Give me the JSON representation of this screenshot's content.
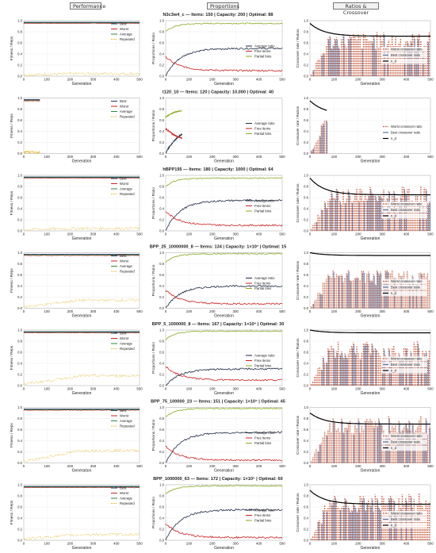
{
  "columns": [
    "Performance",
    "Proportions",
    "Ratios & Crossover"
  ],
  "colors": {
    "best": "#1f3a5f",
    "worst": "#cc2222",
    "average": "#2a8a4a",
    "repeated": "#e0a800",
    "average_ratio": "#1f2a44",
    "free_items": "#cc2222",
    "partial_bins": "#88aa22",
    "worst_cx": "#c8664a",
    "best_cx": "#5577aa",
    "n_d": "#000000"
  },
  "labels": {
    "generation": "Generation",
    "fitness": "Fitness / Reps",
    "proportion": "Proportions / Ratio",
    "crossover": "Crossover rate / Ratios",
    "perf_legend": [
      "Best",
      "Worst",
      "Average",
      "Repeated"
    ],
    "prop_legend": [
      "Average ratio",
      "Free items",
      "Partial bins"
    ],
    "ratio_legend": [
      "Worst crossover ratio",
      "Best crossover ratio",
      "n_d"
    ]
  },
  "chart_data": [
    {
      "type": "line",
      "title": "N3c3w4_c — Items: 150 | Capacity: 200 | Optimal: 88",
      "generations": 500,
      "fitness": {
        "best": 0.97,
        "worst": 0.95,
        "average": 0.96,
        "repeated": 0.02
      },
      "proportions": {
        "average_ratio": 0.5,
        "free_items": 0.1,
        "partial_bins": 0.95
      },
      "ratios": {
        "n_d_start": 0.95,
        "n_d_end": 0.72,
        "cx_start": 0.0,
        "cx_end": 0.8
      },
      "ylim": [
        0,
        1
      ],
      "xlim": [
        0,
        500
      ]
    },
    {
      "type": "line",
      "title": "t120_10 — Items: 120 | Capacity: 10,000 | Optimal: 40",
      "generations": 70,
      "fitness": {
        "best": 0.97,
        "worst": 0.95,
        "average": 0.96,
        "repeated": 0.0
      },
      "proportions": {
        "average_ratio": 0.5,
        "free_items": 0.2,
        "partial_bins": 0.8
      },
      "ratios": {
        "n_d_start": 0.95,
        "n_d_end": 0.7,
        "cx_start": 0.0,
        "cx_end": 0.9
      },
      "ylim": [
        0,
        1
      ],
      "xlim": [
        0,
        500
      ]
    },
    {
      "type": "line",
      "title": "hBPP195 — Items: 180 | Capacity: 1000 | Optimal: 64",
      "generations": 500,
      "fitness": {
        "best": 0.97,
        "worst": 0.95,
        "average": 0.96,
        "repeated": 0.02
      },
      "proportions": {
        "average_ratio": 0.55,
        "free_items": 0.1,
        "partial_bins": 0.95
      },
      "ratios": {
        "n_d_start": 0.95,
        "n_d_end": 0.65,
        "cx_start": 0.0,
        "cx_end": 0.8
      },
      "ylim": [
        0,
        1
      ],
      "xlim": [
        0,
        500
      ]
    },
    {
      "type": "line",
      "title": "BPP_25_10000000_8 — Items: 134 | Capacity: 1×10⁷ | Optimal: 15",
      "generations": 500,
      "fitness": {
        "best": 0.97,
        "worst": 0.95,
        "average": 0.96,
        "repeated": 0.12
      },
      "proportions": {
        "average_ratio": 0.4,
        "free_items": 0.08,
        "partial_bins": 0.98
      },
      "ratios": {
        "n_d_start": 1.0,
        "n_d_end": 0.95,
        "cx_start": 0.0,
        "cx_end": 0.7
      },
      "ylim": [
        0,
        1
      ],
      "xlim": [
        0,
        500
      ]
    },
    {
      "type": "line",
      "title": "BPP_5_1000000_8 — Items: 167 | Capacity: 1×10⁶ | Optimal: 30",
      "generations": 500,
      "fitness": {
        "best": 0.97,
        "worst": 0.95,
        "average": 0.96,
        "repeated": 0.15
      },
      "proportions": {
        "average_ratio": 0.3,
        "free_items": 0.1,
        "partial_bins": 0.98
      },
      "ratios": {
        "n_d_start": 1.0,
        "n_d_end": 0.95,
        "cx_start": 0.0,
        "cx_end": 0.8
      },
      "ylim": [
        0,
        1
      ],
      "xlim": [
        0,
        500
      ]
    },
    {
      "type": "line",
      "title": "BPP_75_100000_23 — Items: 151 | Capacity: 1×10⁵ | Optimal: 45",
      "generations": 500,
      "fitness": {
        "best": 0.97,
        "worst": 0.95,
        "average": 0.96,
        "repeated": 0.2
      },
      "proportions": {
        "average_ratio": 0.55,
        "free_items": 0.05,
        "partial_bins": 0.98
      },
      "ratios": {
        "n_d_start": 0.9,
        "n_d_end": 0.7,
        "cx_start": 0.0,
        "cx_end": 0.85
      },
      "ylim": [
        0,
        1
      ],
      "xlim": [
        0,
        500
      ]
    },
    {
      "type": "line",
      "title": "BPP_1000000_63 — Items: 172 | Capacity: 1×10⁶ | Optimal: 60",
      "generations": 500,
      "fitness": {
        "best": 0.97,
        "worst": 0.95,
        "average": 0.96,
        "repeated": 0.08
      },
      "proportions": {
        "average_ratio": 0.55,
        "free_items": 0.05,
        "partial_bins": 0.98
      },
      "ratios": {
        "n_d_start": 0.9,
        "n_d_end": 0.65,
        "cx_start": 0.0,
        "cx_end": 0.85
      },
      "ylim": [
        0,
        1
      ],
      "xlim": [
        0,
        500
      ]
    }
  ]
}
